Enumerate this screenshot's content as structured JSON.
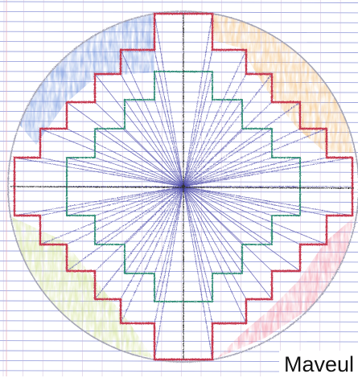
{
  "caption": "Maveul",
  "colors": {
    "paper": "#ffffff",
    "ruling_horizontal": "#8c95d9",
    "ruling_vertical": "#c9b3d6",
    "margin_line": "#e8b0c0",
    "outer_outline": "#c5374f",
    "inner_outline": "#2a8a73",
    "rays": "#4a48a8",
    "center_lines": "#333333",
    "circle": "#a5a5b5",
    "wash_blue": "#5d86d9",
    "wash_orange": "#f2b25a",
    "wash_green": "#c9dd7a",
    "wash_pink": "#f07d93"
  },
  "drawing": {
    "subject": "stepped-cross-mandala",
    "paper": "grid-ruled",
    "coloring": "colored-pencil"
  }
}
